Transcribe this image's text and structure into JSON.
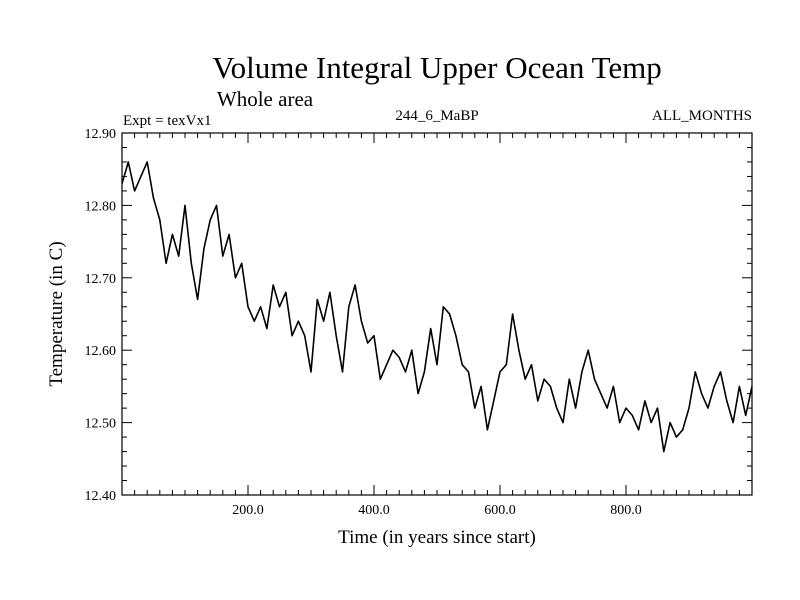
{
  "chart_data": {
    "type": "line",
    "title": "Volume Integral Upper Ocean Temp",
    "subtitle": "Whole area",
    "annotations": {
      "left": "Expt = texVx1",
      "center": "244_6_MaBP",
      "right": "ALL_MONTHS"
    },
    "xlabel": "Time (in years since start)",
    "ylabel": "Temperature (in C)",
    "xlim": [
      0,
      1000
    ],
    "ylim": [
      12.4,
      12.9
    ],
    "xticks": [
      200,
      400,
      600,
      800
    ],
    "xtick_labels": [
      "200.0",
      "400.0",
      "600.0",
      "800.0"
    ],
    "yticks": [
      12.4,
      12.5,
      12.6,
      12.7,
      12.8,
      12.9
    ],
    "ytick_labels": [
      "12.40",
      "12.50",
      "12.60",
      "12.70",
      "12.80",
      "12.90"
    ],
    "grid": false,
    "series": [
      {
        "name": "texVx1",
        "x": [
          0,
          10,
          20,
          30,
          40,
          50,
          60,
          70,
          80,
          90,
          100,
          110,
          120,
          130,
          140,
          150,
          160,
          170,
          180,
          190,
          200,
          210,
          220,
          230,
          240,
          250,
          260,
          270,
          280,
          290,
          300,
          310,
          320,
          330,
          340,
          350,
          360,
          370,
          380,
          390,
          400,
          410,
          420,
          430,
          440,
          450,
          460,
          470,
          480,
          490,
          500,
          510,
          520,
          530,
          540,
          550,
          560,
          570,
          580,
          590,
          600,
          610,
          620,
          630,
          640,
          650,
          660,
          670,
          680,
          690,
          700,
          710,
          720,
          730,
          740,
          750,
          760,
          770,
          780,
          790,
          800,
          810,
          820,
          830,
          840,
          850,
          860,
          870,
          880,
          890,
          900,
          910,
          920,
          930,
          940,
          950,
          960,
          970,
          980,
          990,
          1000
        ],
        "values": [
          12.83,
          12.86,
          12.82,
          12.84,
          12.86,
          12.81,
          12.78,
          12.72,
          12.76,
          12.73,
          12.8,
          12.72,
          12.67,
          12.74,
          12.78,
          12.8,
          12.73,
          12.76,
          12.7,
          12.72,
          12.66,
          12.64,
          12.66,
          12.63,
          12.69,
          12.66,
          12.68,
          12.62,
          12.64,
          12.62,
          12.57,
          12.67,
          12.64,
          12.68,
          12.62,
          12.57,
          12.66,
          12.69,
          12.64,
          12.61,
          12.62,
          12.56,
          12.58,
          12.6,
          12.59,
          12.57,
          12.6,
          12.54,
          12.57,
          12.63,
          12.58,
          12.66,
          12.65,
          12.62,
          12.58,
          12.57,
          12.52,
          12.55,
          12.49,
          12.53,
          12.57,
          12.58,
          12.65,
          12.6,
          12.56,
          12.58,
          12.53,
          12.56,
          12.55,
          12.52,
          12.5,
          12.56,
          12.52,
          12.57,
          12.6,
          12.56,
          12.54,
          12.52,
          12.55,
          12.5,
          12.52,
          12.51,
          12.49,
          12.53,
          12.5,
          12.52,
          12.46,
          12.5,
          12.48,
          12.49,
          12.52,
          12.57,
          12.54,
          12.52,
          12.55,
          12.57,
          12.53,
          12.5,
          12.55,
          12.51,
          12.55
        ]
      }
    ]
  }
}
